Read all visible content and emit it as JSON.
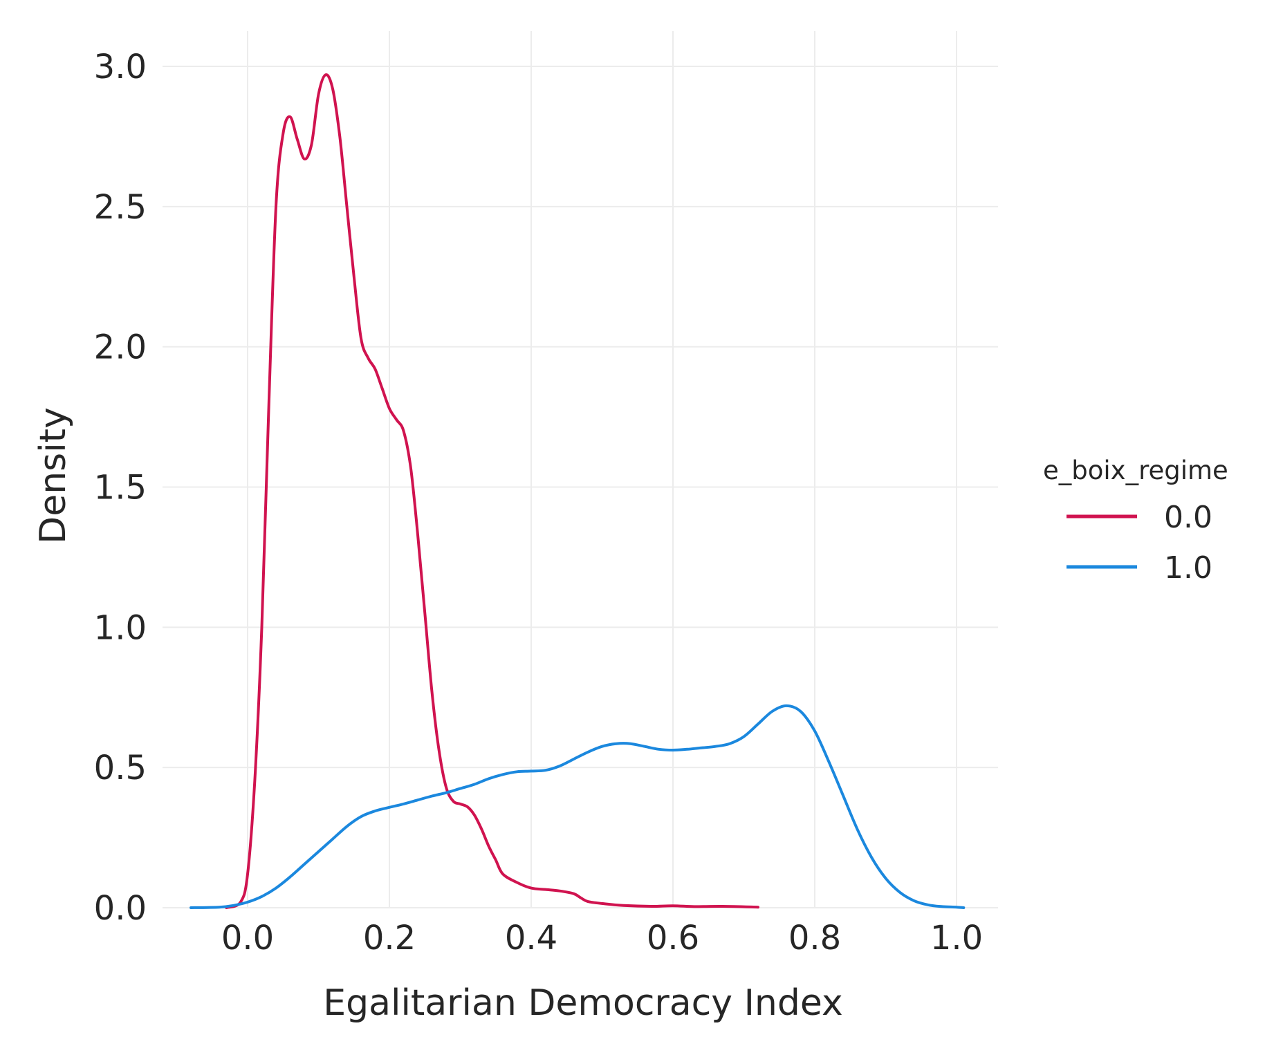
{
  "chart_data": {
    "type": "line",
    "title": "",
    "xlabel": "Egalitarian Democracy Index",
    "ylabel": "Density",
    "xlim": [
      -0.12,
      1.06
    ],
    "ylim": [
      0,
      3.12
    ],
    "xticks": [
      "0.0",
      "0.2",
      "0.4",
      "0.6",
      "0.8",
      "1.0"
    ],
    "yticks": [
      "0.0",
      "0.5",
      "1.0",
      "1.5",
      "2.0",
      "2.5",
      "3.0"
    ],
    "grid": true,
    "legend": {
      "title": "e_boix_regime",
      "position": "right"
    },
    "series": [
      {
        "name": "0.0",
        "color": "#d0134f",
        "points": [
          [
            -0.03,
            0.0
          ],
          [
            -0.01,
            0.02
          ],
          [
            0.0,
            0.12
          ],
          [
            0.01,
            0.45
          ],
          [
            0.02,
            1.0
          ],
          [
            0.03,
            1.8
          ],
          [
            0.04,
            2.5
          ],
          [
            0.05,
            2.76
          ],
          [
            0.06,
            2.82
          ],
          [
            0.07,
            2.74
          ],
          [
            0.08,
            2.67
          ],
          [
            0.09,
            2.72
          ],
          [
            0.1,
            2.9
          ],
          [
            0.11,
            2.97
          ],
          [
            0.12,
            2.92
          ],
          [
            0.13,
            2.75
          ],
          [
            0.14,
            2.5
          ],
          [
            0.15,
            2.25
          ],
          [
            0.16,
            2.03
          ],
          [
            0.17,
            1.96
          ],
          [
            0.18,
            1.92
          ],
          [
            0.19,
            1.85
          ],
          [
            0.2,
            1.78
          ],
          [
            0.21,
            1.74
          ],
          [
            0.22,
            1.7
          ],
          [
            0.23,
            1.57
          ],
          [
            0.24,
            1.33
          ],
          [
            0.25,
            1.05
          ],
          [
            0.26,
            0.77
          ],
          [
            0.27,
            0.56
          ],
          [
            0.28,
            0.43
          ],
          [
            0.29,
            0.38
          ],
          [
            0.3,
            0.37
          ],
          [
            0.31,
            0.36
          ],
          [
            0.32,
            0.33
          ],
          [
            0.33,
            0.28
          ],
          [
            0.34,
            0.22
          ],
          [
            0.35,
            0.17
          ],
          [
            0.36,
            0.12
          ],
          [
            0.38,
            0.09
          ],
          [
            0.4,
            0.07
          ],
          [
            0.42,
            0.065
          ],
          [
            0.44,
            0.06
          ],
          [
            0.46,
            0.05
          ],
          [
            0.47,
            0.035
          ],
          [
            0.48,
            0.022
          ],
          [
            0.5,
            0.015
          ],
          [
            0.53,
            0.008
          ],
          [
            0.57,
            0.005
          ],
          [
            0.6,
            0.007
          ],
          [
            0.63,
            0.004
          ],
          [
            0.67,
            0.005
          ],
          [
            0.72,
            0.002
          ]
        ]
      },
      {
        "name": "1.0",
        "color": "#1b88de",
        "points": [
          [
            -0.08,
            0.0
          ],
          [
            -0.04,
            0.002
          ],
          [
            -0.02,
            0.008
          ],
          [
            0.0,
            0.02
          ],
          [
            0.02,
            0.04
          ],
          [
            0.04,
            0.07
          ],
          [
            0.06,
            0.11
          ],
          [
            0.08,
            0.155
          ],
          [
            0.1,
            0.2
          ],
          [
            0.12,
            0.245
          ],
          [
            0.14,
            0.29
          ],
          [
            0.16,
            0.325
          ],
          [
            0.18,
            0.345
          ],
          [
            0.2,
            0.358
          ],
          [
            0.22,
            0.37
          ],
          [
            0.24,
            0.384
          ],
          [
            0.26,
            0.398
          ],
          [
            0.28,
            0.41
          ],
          [
            0.3,
            0.425
          ],
          [
            0.32,
            0.44
          ],
          [
            0.34,
            0.46
          ],
          [
            0.36,
            0.475
          ],
          [
            0.38,
            0.485
          ],
          [
            0.4,
            0.487
          ],
          [
            0.42,
            0.49
          ],
          [
            0.44,
            0.505
          ],
          [
            0.46,
            0.53
          ],
          [
            0.48,
            0.555
          ],
          [
            0.5,
            0.575
          ],
          [
            0.52,
            0.585
          ],
          [
            0.54,
            0.585
          ],
          [
            0.56,
            0.575
          ],
          [
            0.58,
            0.565
          ],
          [
            0.6,
            0.562
          ],
          [
            0.62,
            0.565
          ],
          [
            0.64,
            0.57
          ],
          [
            0.66,
            0.575
          ],
          [
            0.68,
            0.585
          ],
          [
            0.7,
            0.61
          ],
          [
            0.72,
            0.655
          ],
          [
            0.74,
            0.7
          ],
          [
            0.76,
            0.72
          ],
          [
            0.78,
            0.7
          ],
          [
            0.8,
            0.63
          ],
          [
            0.82,
            0.52
          ],
          [
            0.84,
            0.4
          ],
          [
            0.86,
            0.28
          ],
          [
            0.88,
            0.18
          ],
          [
            0.9,
            0.105
          ],
          [
            0.92,
            0.055
          ],
          [
            0.94,
            0.025
          ],
          [
            0.96,
            0.01
          ],
          [
            0.98,
            0.004
          ],
          [
            1.0,
            0.002
          ],
          [
            1.01,
            0.0
          ]
        ]
      }
    ]
  }
}
